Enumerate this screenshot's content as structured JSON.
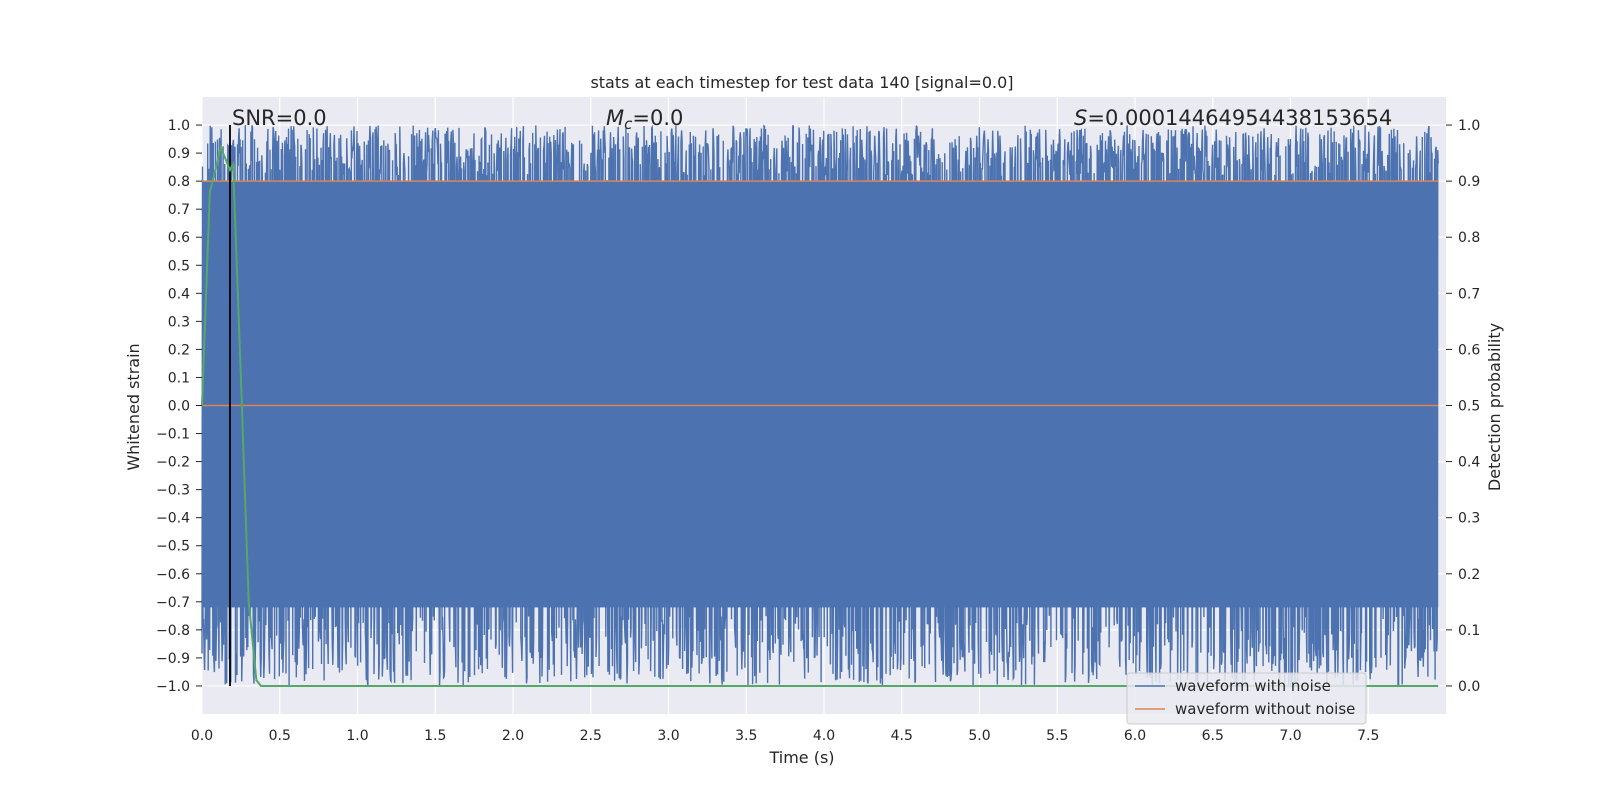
{
  "chart_data": {
    "type": "line",
    "title": "stats at each timestep for test data 140 [signal=0.0]",
    "xlabel": "Time (s)",
    "ylabel_left": "Whitened strain",
    "ylabel_right": "Detection probability",
    "xlim": [
      0.0,
      8.0
    ],
    "ylim_left": [
      -1.1,
      1.1
    ],
    "ylim_right": [
      -0.05,
      1.05
    ],
    "x_ticks": [
      "0.0",
      "0.5",
      "1.0",
      "1.5",
      "2.0",
      "2.5",
      "3.0",
      "3.5",
      "4.0",
      "4.5",
      "5.0",
      "5.5",
      "6.0",
      "6.5",
      "7.0",
      "7.5"
    ],
    "y_ticks_left": [
      "1.0",
      "0.9",
      "0.8",
      "0.7",
      "0.6",
      "0.5",
      "0.4",
      "0.3",
      "0.2",
      "0.1",
      "0.0",
      "−0.1",
      "−0.2",
      "−0.3",
      "−0.4",
      "−0.5",
      "−0.6",
      "−0.7",
      "−0.8",
      "−0.9",
      "−1.0"
    ],
    "y_ticks_right": [
      "1.0",
      "0.9",
      "0.8",
      "0.7",
      "0.6",
      "0.5",
      "0.4",
      "0.3",
      "0.2",
      "0.1",
      "0.0"
    ],
    "annotations": {
      "snr": "SNR=0.0",
      "mc_symbol": "M",
      "mc_sub": "c",
      "mc_value": "=0.0",
      "s_symbol": "S",
      "s_value": "=0.00014464954438153654"
    },
    "series": [
      {
        "name": "waveform with noise",
        "color": "#4c72b0",
        "description_range": [
          -1.0,
          1.0
        ]
      },
      {
        "name": "waveform without noise",
        "color": "#dd8452",
        "value": 0.0
      },
      {
        "color": "#dd8452",
        "axis": "right",
        "value": 0.9
      },
      {
        "color": "#55a868",
        "axis": "right",
        "x": [
          0.0,
          0.05,
          0.12,
          0.18,
          0.2,
          0.25,
          0.3,
          0.35,
          0.38,
          0.45,
          1.0,
          2.0,
          3.0,
          4.0,
          5.0,
          6.0,
          7.0,
          7.95
        ],
        "y": [
          0.5,
          0.88,
          0.96,
          0.92,
          0.93,
          0.55,
          0.15,
          0.01,
          0.0,
          0.0,
          0.0,
          0.0,
          0.0,
          0.0,
          0.0,
          0.0,
          0.0,
          0.0
        ]
      }
    ],
    "vline": {
      "x": 0.18,
      "color": "#000000"
    },
    "grid": true,
    "legend": "lower right",
    "colors": {
      "background": "#eaeaf2",
      "grid": "#ffffff",
      "noise": "#4c72b0",
      "clean": "#dd8452",
      "prob": "#55a868"
    }
  }
}
